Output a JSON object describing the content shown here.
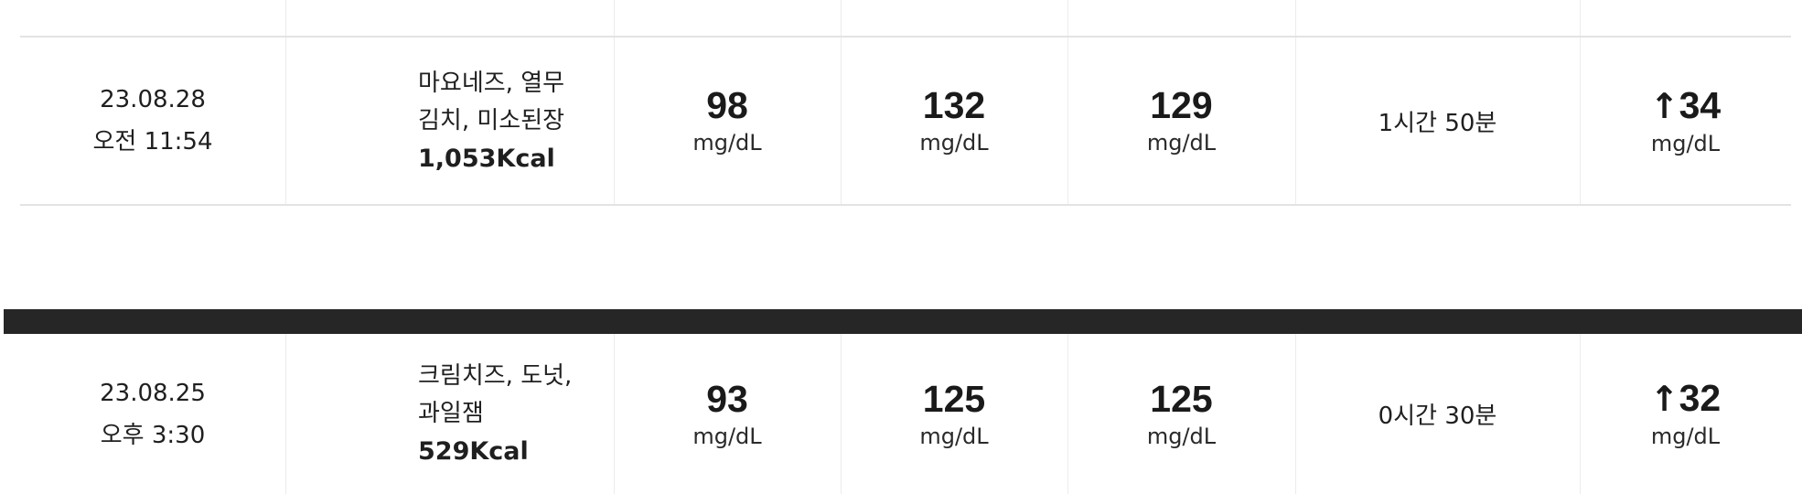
{
  "records": [
    {
      "date": "23.08.28",
      "time": "오전 11:54",
      "food_line1": "마요네즈, 열무",
      "food_line2": "김치, 미소된장",
      "kcal": "1,053Kcal",
      "before": "98",
      "peak": "132",
      "after": "129",
      "unit": "mg/dL",
      "duration": "1시간 50분",
      "rise_arrow": "↑",
      "rise": "34"
    },
    {
      "date": "23.08.25",
      "time": "오후 3:30",
      "food_line1": "크림치즈, 도넛,",
      "food_line2": "과일잼",
      "kcal": "529Kcal",
      "before": "93",
      "peak": "125",
      "after": "125",
      "unit": "mg/dL",
      "duration": "0시간 30분",
      "rise_arrow": "↑",
      "rise": "32"
    }
  ]
}
